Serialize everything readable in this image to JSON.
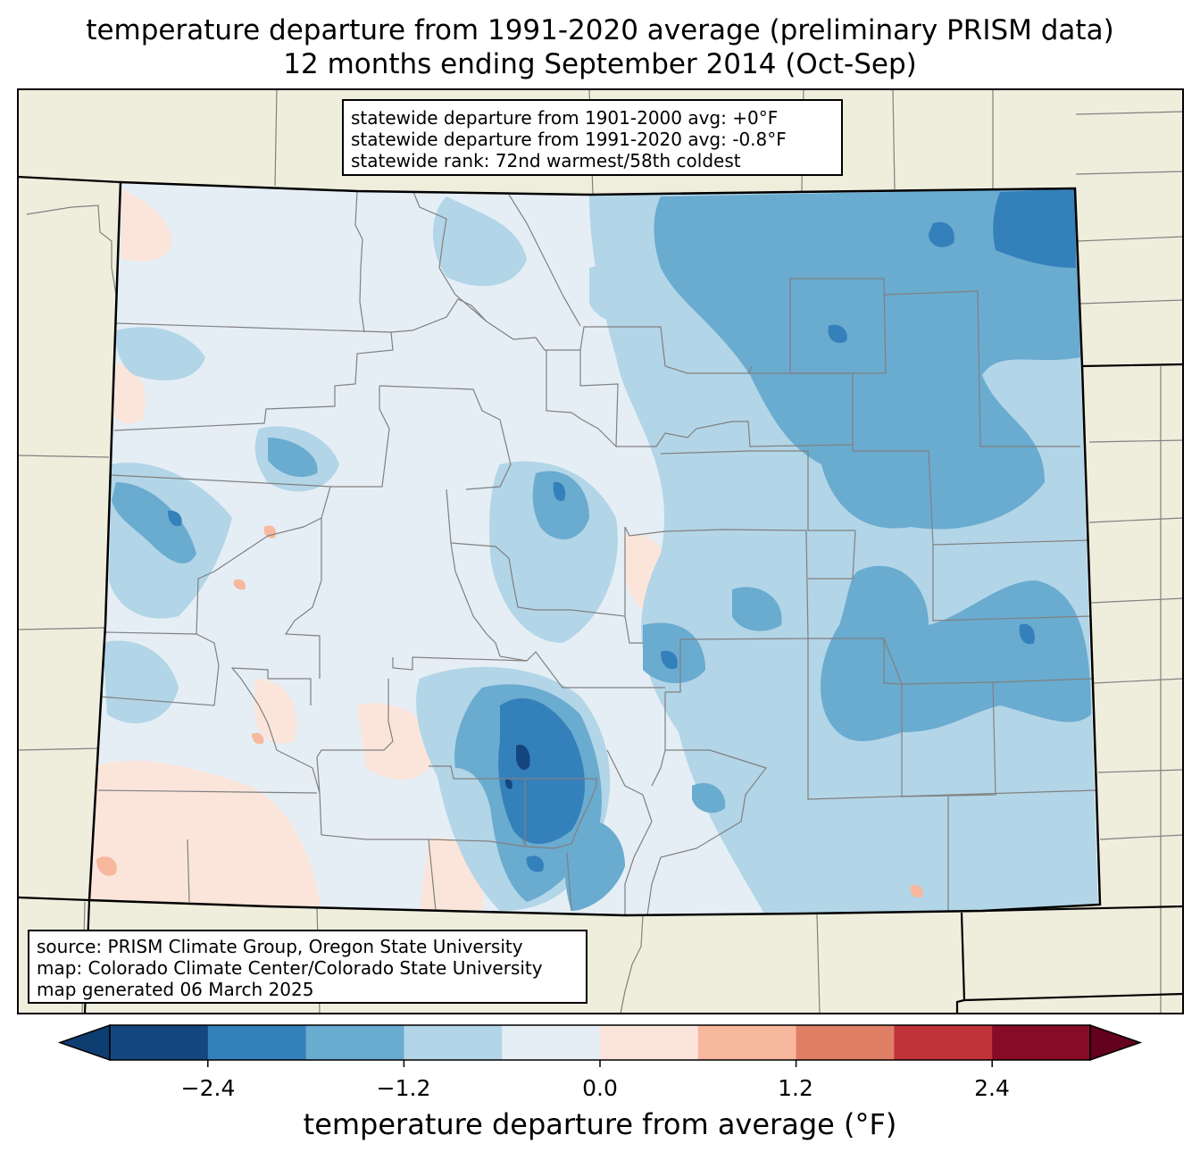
{
  "title": {
    "line1": "temperature departure from 1991-2020 average (preliminary PRISM data)",
    "line2": "12 months ending September 2014 (Oct-Sep)"
  },
  "stats": {
    "line1": "statewide departure from 1901-2000 avg: +0°F",
    "line2": "statewide departure from 1991-2020 avg: -0.8°F",
    "line3": "statewide rank: 72nd warmest/58th coldest"
  },
  "source": {
    "line1": "source: PRISM Climate Group, Oregon State University",
    "line2": "map: Colorado Climate Center/Colorado State University",
    "line3": "map generated 06 March 2025"
  },
  "colorbar": {
    "label": "temperature departure from average (°F)",
    "ticks": [
      "−2.4",
      "−1.2",
      "0.0",
      "1.2",
      "2.4"
    ],
    "bins": [
      -3.0,
      -2.4,
      -1.8,
      -1.2,
      -0.6,
      0.0,
      0.6,
      1.2,
      1.8,
      2.4,
      3.0
    ],
    "colors": [
      "#0e3d71",
      "#16467f",
      "#3480ba",
      "#6aabd0",
      "#b2d5e7",
      "#e5eef5",
      "#fbe5db",
      "#f7b89d",
      "#e07f66",
      "#bf3339",
      "#870b26",
      "#64011f"
    ]
  },
  "map_colors": {
    "land": "#efeedd",
    "state_border": "#000000",
    "county_border": "#808080"
  }
}
